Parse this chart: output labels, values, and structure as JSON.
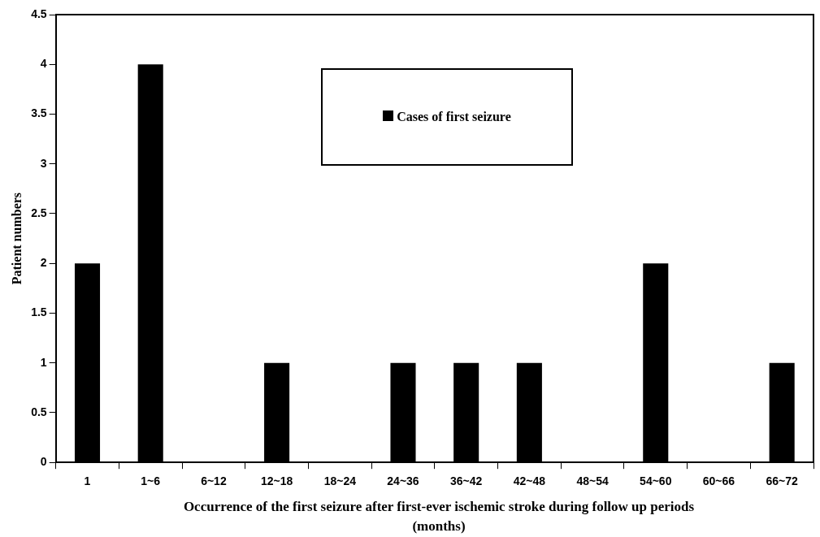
{
  "chart_data": {
    "type": "bar",
    "xlabel": "Occurrence of the first seizure after first-ever ischemic stroke during follow up periods (months)",
    "ylabel": "Patient numbers",
    "categories": [
      "1",
      "1~6",
      "6~12",
      "12~18",
      "18~24",
      "24~36",
      "36~42",
      "42~48",
      "48~54",
      "54~60",
      "60~66",
      "66~72"
    ],
    "series": [
      {
        "name": "Cases of first seizure",
        "color": "#000000",
        "values": [
          2,
          4,
          0,
          1,
          0,
          1,
          1,
          1,
          0,
          2,
          0,
          1
        ]
      }
    ],
    "ylim": [
      0,
      4.5
    ],
    "yticks": [
      0,
      0.5,
      1,
      1.5,
      2,
      2.5,
      3,
      3.5,
      4,
      4.5
    ],
    "grid": false,
    "legend": "top"
  }
}
